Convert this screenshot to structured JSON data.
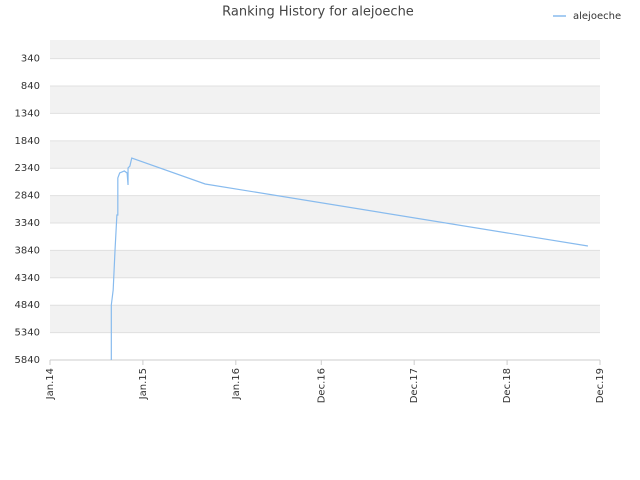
{
  "chart_data": {
    "type": "line",
    "title": "Ranking History for alejoeche",
    "x": [
      2014.66,
      2014.66,
      2014.68,
      2014.7,
      2014.72,
      2014.73,
      2014.73,
      2014.75,
      2014.8,
      2014.83,
      2014.84,
      2014.84,
      2014.86,
      2014.88,
      2015.67,
      2019.79
    ],
    "series": [
      {
        "name": "alejoeche",
        "color": "#88bbee",
        "values": [
          5840,
          4836,
          4562,
          3832,
          3194,
          3194,
          2518,
          2427,
          2390,
          2427,
          2646,
          2336,
          2300,
          2154,
          2628,
          3760
        ]
      }
    ],
    "xlim": [
      2014,
      2019.92
    ],
    "xticks": [
      {
        "value": 2014,
        "label": "Jan.14"
      },
      {
        "value": 2015,
        "label": "Jan.15"
      },
      {
        "value": 2016,
        "label": "Jan.16"
      },
      {
        "value": 2016.92,
        "label": "Dec.16"
      },
      {
        "value": 2017.92,
        "label": "Dec.17"
      },
      {
        "value": 2018.92,
        "label": "Dec.18"
      },
      {
        "value": 2019.92,
        "label": "Dec.19"
      }
    ],
    "ylim": [
      5840,
      0
    ],
    "yticks": [
      340,
      840,
      1340,
      1840,
      2340,
      2840,
      3340,
      3840,
      4340,
      4840,
      5340,
      5840
    ],
    "grid": true,
    "legend": "top-right"
  }
}
